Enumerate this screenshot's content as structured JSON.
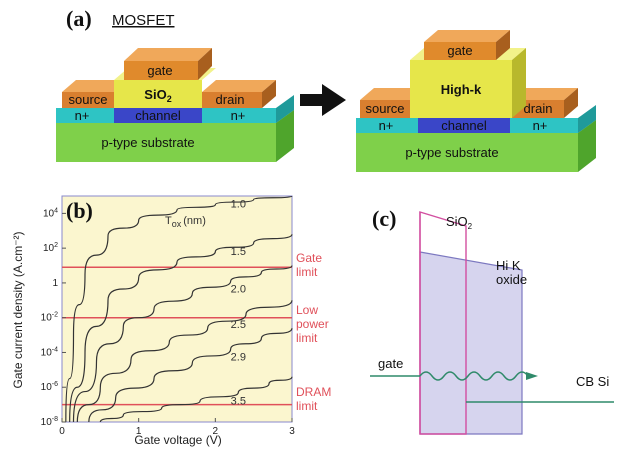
{
  "panel_a": {
    "label": "(a)",
    "title": "MOSFET",
    "left": {
      "gate": "gate",
      "oxide": "SiO",
      "oxide_sub": "2",
      "source": "source",
      "drain": "drain",
      "n_left": "n+",
      "n_right": "n+",
      "channel": "channel",
      "substrate": "p-type substrate"
    },
    "right": {
      "gate": "gate",
      "oxide": "High-k",
      "source": "source",
      "drain": "drain",
      "n_left": "n+",
      "n_right": "n+",
      "channel": "channel",
      "substrate": "p-type substrate"
    },
    "colors": {
      "gate": "#e08a2c",
      "oxide": "#e6e64a",
      "source_drain": "#d97f2f",
      "nplus": "#2ec4c4",
      "channel": "#3a46c8",
      "substrate": "#7fd04a"
    }
  },
  "panel_b": {
    "label": "(b)",
    "limits": {
      "gate": [
        "Gate",
        "limit"
      ],
      "low_power": [
        "Low",
        "power",
        "limit"
      ],
      "dram": [
        "DRAM",
        "limit"
      ]
    },
    "colors": {
      "bg": "#fbf6cf",
      "limit_line": "#e0505a",
      "curve": "#333333"
    }
  },
  "chart_data": {
    "type": "line",
    "xlabel": "Gate voltage (V)",
    "ylabel": "Gate current density (A.cm⁻²)",
    "legend_title": "T",
    "legend_title_sub": "ox",
    "legend_title_unit": "(nm)",
    "xlim": [
      0,
      3
    ],
    "ylim_log10": [
      -8,
      5
    ],
    "x_ticks": [
      0,
      1,
      2,
      3
    ],
    "y_ticks": [
      {
        "exp": 4,
        "label": "10",
        "sup": "4"
      },
      {
        "exp": 2,
        "label": "10",
        "sup": "2"
      },
      {
        "exp": 0,
        "label": "1",
        "sup": ""
      },
      {
        "exp": -2,
        "label": "10",
        "sup": "-2"
      },
      {
        "exp": -4,
        "label": "10",
        "sup": "-4"
      },
      {
        "exp": -6,
        "label": "10",
        "sup": "-6"
      },
      {
        "exp": -8,
        "label": "10",
        "sup": "-8"
      }
    ],
    "horizontal_limits_log10": [
      {
        "name": "Gate limit",
        "y": 0.9
      },
      {
        "name": "Low power limit",
        "y": -2
      },
      {
        "name": "DRAM limit",
        "y": -7
      }
    ],
    "series": [
      {
        "name": "1.0",
        "points": [
          [
            0.05,
            -8
          ],
          [
            0.15,
            -3
          ],
          [
            0.3,
            0.5
          ],
          [
            0.6,
            2.7
          ],
          [
            1.0,
            3.6
          ],
          [
            1.5,
            4.2
          ],
          [
            2.0,
            4.5
          ],
          [
            2.5,
            4.8
          ],
          [
            3.0,
            5.0
          ]
        ]
      },
      {
        "name": "1.5",
        "points": [
          [
            0.1,
            -8
          ],
          [
            0.3,
            -4
          ],
          [
            0.6,
            -1
          ],
          [
            1.0,
            0.3
          ],
          [
            1.5,
            1.2
          ],
          [
            2.0,
            1.8
          ],
          [
            2.5,
            2.3
          ],
          [
            3.0,
            2.8
          ]
        ]
      },
      {
        "name": "2.0",
        "points": [
          [
            0.15,
            -8
          ],
          [
            0.45,
            -4.5
          ],
          [
            0.8,
            -2.5
          ],
          [
            1.2,
            -1.5
          ],
          [
            1.7,
            -0.6
          ],
          [
            2.2,
            0.1
          ],
          [
            2.6,
            0.6
          ],
          [
            3.0,
            1.0
          ]
        ]
      },
      {
        "name": "2.5",
        "points": [
          [
            0.2,
            -8
          ],
          [
            0.5,
            -6
          ],
          [
            0.9,
            -4.4
          ],
          [
            1.4,
            -3.4
          ],
          [
            1.9,
            -2.6
          ],
          [
            2.4,
            -1.8
          ],
          [
            3.0,
            -1.0
          ]
        ]
      },
      {
        "name": "2.9",
        "points": [
          [
            0.35,
            -8
          ],
          [
            0.7,
            -6.6
          ],
          [
            1.2,
            -5.5
          ],
          [
            1.7,
            -4.6
          ],
          [
            2.2,
            -3.8
          ],
          [
            2.6,
            -3.2
          ],
          [
            3.0,
            -2.6
          ]
        ]
      },
      {
        "name": "3.5",
        "points": [
          [
            0.5,
            -8
          ],
          [
            0.8,
            -7.6
          ],
          [
            1.3,
            -7.2
          ],
          [
            1.8,
            -6.8
          ],
          [
            2.3,
            -6.3
          ],
          [
            2.7,
            -5.8
          ],
          [
            3.0,
            -5.4
          ]
        ]
      }
    ],
    "curve_label_pos": [
      {
        "name": "1.0",
        "x": 2.2,
        "y": 4.35
      },
      {
        "name": "1.5",
        "x": 2.2,
        "y": 1.6
      },
      {
        "name": "2.0",
        "x": 2.2,
        "y": -0.55
      },
      {
        "name": "2.5",
        "x": 2.2,
        "y": -2.6
      },
      {
        "name": "2.9",
        "x": 2.2,
        "y": -4.45
      },
      {
        "name": "3.5",
        "x": 2.2,
        "y": -7.0
      }
    ]
  },
  "panel_c": {
    "label": "(c)",
    "sio2": "SiO",
    "sio2_sub": "2",
    "hik": [
      "Hi K",
      "oxide"
    ],
    "gate": "gate",
    "cb": "CB Si",
    "colors": {
      "sio2_edge": "#d24fa0",
      "hik_fill": "#d6d4ee",
      "hik_edge": "#7c78c0",
      "level": "#2f8a6a"
    }
  }
}
